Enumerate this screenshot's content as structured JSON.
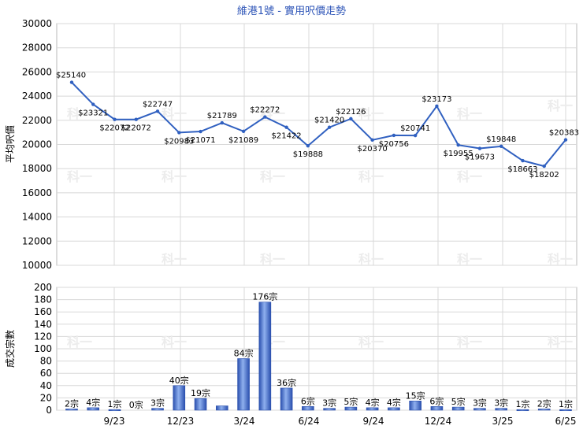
{
  "chart_data": [
    {
      "type": "line",
      "title": "維港1號 - 實用呎價走勢",
      "ylabel": "平均呎價",
      "ylim": [
        10000,
        30000
      ],
      "y_ticks": [
        "10000",
        "12000",
        "14000",
        "16000",
        "18000",
        "20000",
        "22000",
        "24000",
        "26000",
        "28000",
        "30000"
      ],
      "watermark": "科一",
      "color": "#3060c0",
      "series": [
        {
          "values": [
            25140,
            23321,
            22072,
            22072,
            22747,
            20983,
            21071,
            21789,
            21089,
            22272,
            21422,
            19888,
            21420,
            22126,
            20370,
            20756,
            20741,
            23173,
            19955,
            19673,
            19848,
            18663,
            18202,
            20383
          ],
          "labels": [
            "$25140",
            "$23321",
            "$22072",
            "$22072",
            "$22747",
            "$20983",
            "$21071",
            "$21789",
            "$21089",
            "$22272",
            "$21422",
            "$19888",
            "$21420",
            "$22126",
            "$20370",
            "$20756",
            "$20741",
            "$23173",
            "$19955",
            "$19673",
            "$19848",
            "$18663",
            "$18202",
            "$20383"
          ]
        }
      ]
    },
    {
      "type": "bar",
      "ylabel": "成交宗數",
      "ylim": [
        0,
        200
      ],
      "y_ticks": [
        "0",
        "20",
        "40",
        "60",
        "80",
        "100",
        "120",
        "140",
        "160",
        "180",
        "200"
      ],
      "x_ticks": [
        "9/23",
        "12/23",
        "3/24",
        "6/24",
        "9/24",
        "12/24",
        "3/25",
        "6/25"
      ],
      "color": "#3a63c4",
      "series": [
        {
          "values": [
            2,
            4,
            1,
            0,
            3,
            40,
            19,
            7,
            84,
            176,
            36,
            6,
            3,
            5,
            4,
            4,
            15,
            6,
            5,
            3,
            3,
            1,
            2,
            1
          ],
          "labels": [
            "2宗",
            "4宗",
            "1宗",
            "0宗",
            "3宗",
            "40宗",
            "19宗",
            "",
            "84宗",
            "176宗",
            "36宗",
            "6宗",
            "3宗",
            "5宗",
            "4宗",
            "4宗",
            "15宗",
            "6宗",
            "5宗",
            "3宗",
            "3宗",
            "1宗",
            "2宗",
            "1宗"
          ]
        }
      ]
    }
  ]
}
